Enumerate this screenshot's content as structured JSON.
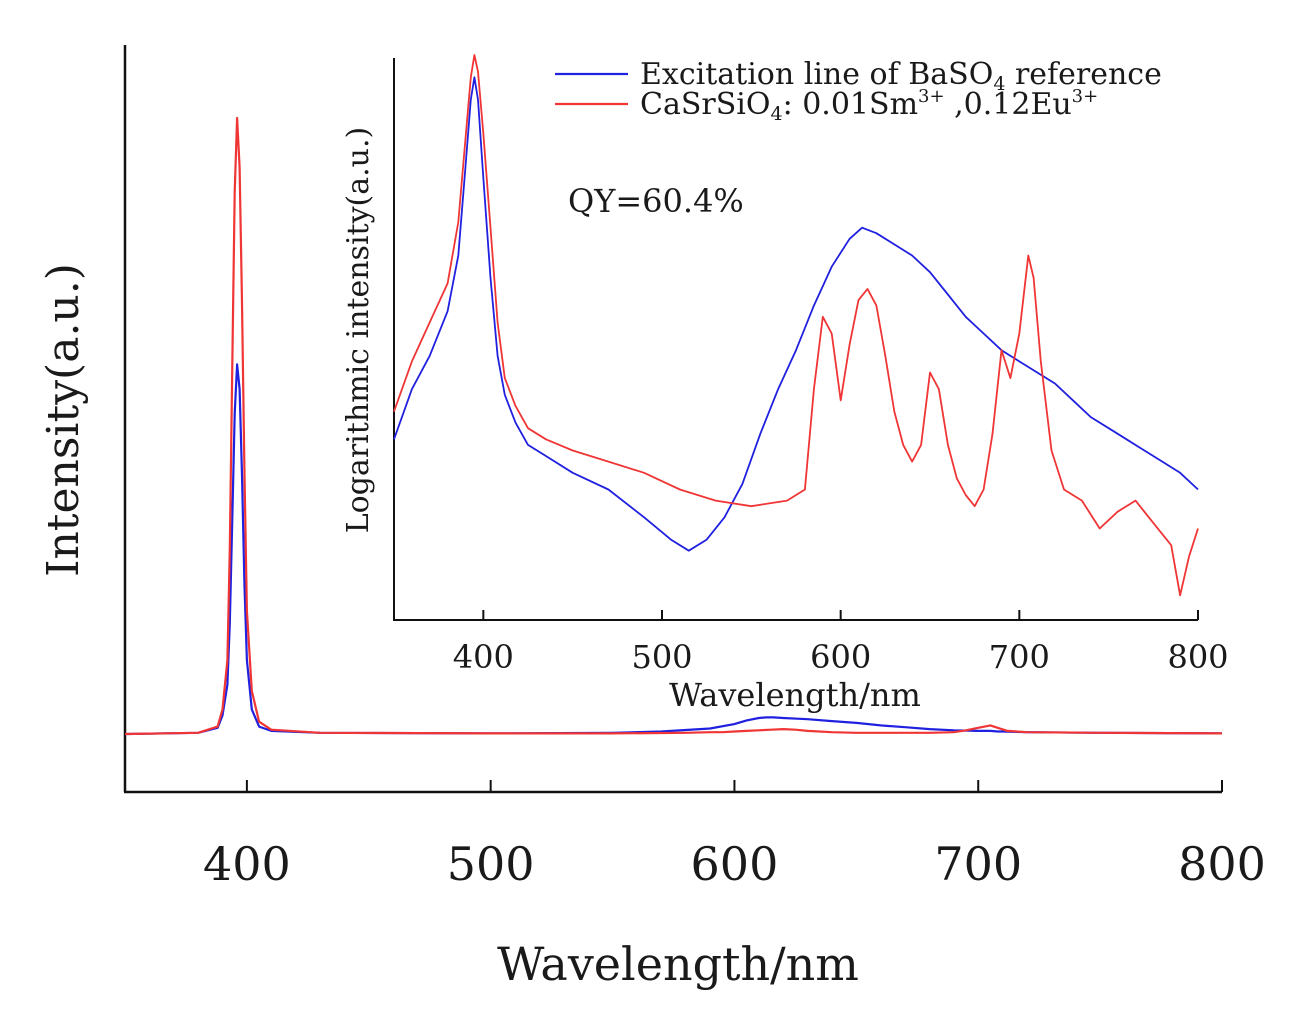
{
  "chart_data": [
    {
      "type": "line",
      "role": "main",
      "xlabel": "Wavelength/nm",
      "ylabel": "Intensity(a.u.)",
      "xlim": [
        350,
        800
      ],
      "ylim": [
        0,
        1
      ],
      "xticks": [
        "400",
        "500",
        "600",
        "700",
        "800"
      ],
      "grid": false,
      "series": [
        {
          "color": "#2020e0",
          "x": [
            350,
            380,
            388,
            390,
            392,
            393,
            394,
            395,
            396,
            397,
            398,
            399,
            400,
            402,
            405,
            410,
            430,
            500,
            550,
            570,
            590,
            600,
            605,
            610,
            613,
            616,
            620,
            630,
            640,
            650,
            660,
            670,
            680,
            690,
            700,
            705,
            708,
            710,
            720,
            750,
            800
          ],
          "y": [
            0.0,
            0.002,
            0.01,
            0.03,
            0.08,
            0.18,
            0.35,
            0.52,
            0.6,
            0.56,
            0.42,
            0.24,
            0.12,
            0.04,
            0.012,
            0.005,
            0.002,
            0.001,
            0.002,
            0.004,
            0.009,
            0.016,
            0.022,
            0.026,
            0.027,
            0.027,
            0.026,
            0.024,
            0.021,
            0.018,
            0.014,
            0.011,
            0.008,
            0.006,
            0.005,
            0.005,
            0.004,
            0.004,
            0.003,
            0.002,
            0.001
          ]
        },
        {
          "color": "#f03535",
          "x": [
            350,
            380,
            388,
            390,
            392,
            393,
            394,
            395,
            396,
            397,
            398,
            399,
            400,
            402,
            405,
            410,
            430,
            500,
            550,
            580,
            590,
            595,
            600,
            605,
            610,
            615,
            620,
            625,
            630,
            640,
            650,
            660,
            680,
            690,
            695,
            700,
            705,
            708,
            712,
            720,
            750,
            800
          ],
          "y": [
            0.0,
            0.002,
            0.012,
            0.04,
            0.12,
            0.3,
            0.6,
            0.88,
            1.0,
            0.92,
            0.7,
            0.42,
            0.2,
            0.07,
            0.02,
            0.007,
            0.002,
            0.001,
            0.001,
            0.002,
            0.003,
            0.003,
            0.004,
            0.005,
            0.006,
            0.007,
            0.008,
            0.007,
            0.005,
            0.003,
            0.002,
            0.002,
            0.002,
            0.003,
            0.006,
            0.01,
            0.014,
            0.01,
            0.005,
            0.003,
            0.002,
            0.001
          ]
        }
      ]
    },
    {
      "type": "line",
      "role": "inset",
      "xlabel": "Wavelength/nm",
      "ylabel": "Logarithmic intensity(a.u.)",
      "xlim": [
        350,
        800
      ],
      "ylim": [
        0,
        1
      ],
      "xticks": [
        "400",
        "500",
        "600",
        "700",
        "800"
      ],
      "annotation": "QY=60.4%",
      "legend_position": "top-right",
      "legend": [
        {
          "color": "#2020e0",
          "parts": [
            "Excitation line of BaSO",
            "4",
            " reference"
          ]
        },
        {
          "color": "#f03535",
          "parts": [
            "CaSrSiO",
            "4",
            ": 0.01Sm",
            "3+",
            " ,0.12Eu",
            "3+"
          ]
        }
      ],
      "grid": false,
      "series": [
        {
          "color": "#2020e0",
          "x": [
            350,
            360,
            370,
            380,
            386,
            390,
            393,
            395,
            397,
            400,
            404,
            408,
            412,
            418,
            425,
            435,
            450,
            470,
            490,
            505,
            515,
            525,
            535,
            545,
            555,
            565,
            575,
            585,
            595,
            605,
            612,
            620,
            630,
            640,
            650,
            660,
            670,
            680,
            690,
            700,
            710,
            720,
            730,
            740,
            750,
            760,
            770,
            780,
            790,
            800
          ],
          "y": [
            0.31,
            0.4,
            0.46,
            0.54,
            0.64,
            0.8,
            0.92,
            0.96,
            0.92,
            0.78,
            0.6,
            0.46,
            0.39,
            0.34,
            0.3,
            0.28,
            0.25,
            0.22,
            0.17,
            0.13,
            0.11,
            0.13,
            0.17,
            0.23,
            0.32,
            0.4,
            0.47,
            0.55,
            0.62,
            0.67,
            0.69,
            0.68,
            0.66,
            0.64,
            0.61,
            0.57,
            0.53,
            0.5,
            0.47,
            0.45,
            0.43,
            0.41,
            0.38,
            0.35,
            0.33,
            0.31,
            0.29,
            0.27,
            0.25,
            0.22
          ]
        },
        {
          "color": "#f03535",
          "x": [
            350,
            360,
            370,
            380,
            386,
            390,
            393,
            395,
            397,
            400,
            404,
            408,
            412,
            418,
            425,
            435,
            450,
            470,
            490,
            510,
            530,
            550,
            570,
            580,
            585,
            590,
            595,
            600,
            605,
            610,
            615,
            620,
            625,
            630,
            635,
            640,
            645,
            650,
            655,
            660,
            665,
            670,
            675,
            680,
            685,
            690,
            695,
            700,
            705,
            708,
            712,
            718,
            725,
            735,
            745,
            755,
            765,
            775,
            785,
            790,
            795,
            800
          ],
          "y": [
            0.36,
            0.45,
            0.52,
            0.59,
            0.7,
            0.85,
            0.96,
            1.0,
            0.97,
            0.86,
            0.69,
            0.52,
            0.42,
            0.37,
            0.33,
            0.31,
            0.29,
            0.27,
            0.25,
            0.22,
            0.2,
            0.19,
            0.2,
            0.22,
            0.4,
            0.53,
            0.5,
            0.38,
            0.48,
            0.56,
            0.58,
            0.55,
            0.46,
            0.36,
            0.3,
            0.27,
            0.3,
            0.43,
            0.4,
            0.3,
            0.24,
            0.21,
            0.19,
            0.22,
            0.32,
            0.47,
            0.42,
            0.5,
            0.64,
            0.6,
            0.45,
            0.29,
            0.22,
            0.2,
            0.15,
            0.18,
            0.2,
            0.16,
            0.12,
            0.03,
            0.1,
            0.15
          ]
        }
      ]
    }
  ]
}
